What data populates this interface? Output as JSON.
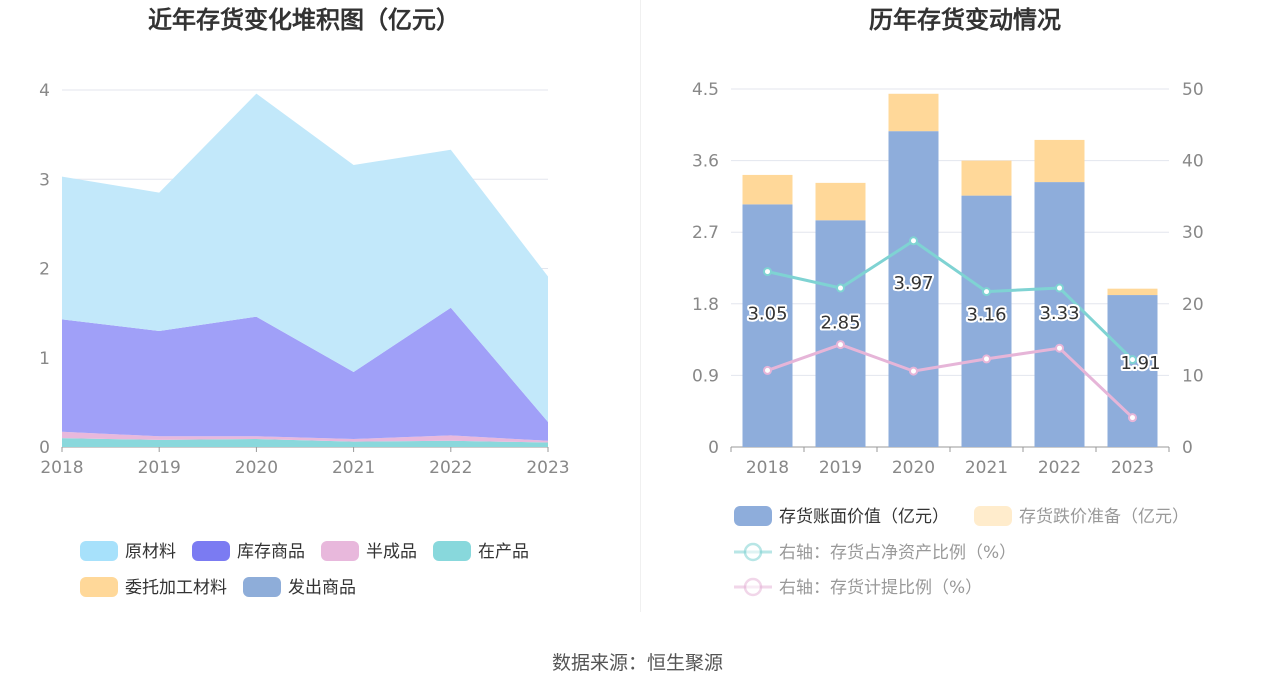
{
  "source": "数据来源：恒生聚源",
  "chart_data": [
    {
      "type": "area",
      "stacked": true,
      "title": "近年存货变化堆积图（亿元）",
      "x": [
        "2018",
        "2019",
        "2020",
        "2021",
        "2022",
        "2023"
      ],
      "ylim": [
        0,
        4
      ],
      "yticks": [
        "0",
        "1",
        "2",
        "3",
        "4"
      ],
      "grid": true,
      "legend_position": "bottom",
      "series": [
        {
          "name": "在产品",
          "color": "#8ad8dc",
          "values": [
            0.1,
            0.08,
            0.09,
            0.06,
            0.07,
            0.05
          ]
        },
        {
          "name": "半成品",
          "color": "#e8b8dc",
          "values": [
            0.07,
            0.04,
            0.03,
            0.03,
            0.06,
            0.02
          ]
        },
        {
          "name": "库存商品",
          "color": "#a0a0f8",
          "values": [
            1.26,
            1.18,
            1.34,
            0.75,
            1.43,
            0.21
          ]
        },
        {
          "name": "原材料",
          "color": "#c2e8fa",
          "values": [
            1.6,
            1.55,
            2.5,
            2.32,
            1.77,
            1.63
          ]
        },
        {
          "name": "委托加工材料",
          "color": "#ffd899",
          "values": [
            0,
            0,
            0,
            0,
            0,
            0
          ]
        },
        {
          "name": "发出商品",
          "color": "#8eadd9",
          "values": [
            0,
            0,
            0,
            0,
            0,
            0
          ]
        }
      ],
      "legend": [
        {
          "name": "原材料",
          "color": "#a7e1fb"
        },
        {
          "name": "库存商品",
          "color": "#7b7bf2"
        },
        {
          "name": "半成品",
          "color": "#e8b8dc"
        },
        {
          "name": "在产品",
          "color": "#88d8dc"
        },
        {
          "name": "委托加工材料",
          "color": "#ffd899"
        },
        {
          "name": "发出商品",
          "color": "#8eadd9"
        }
      ]
    },
    {
      "type": "bar",
      "stacked": true,
      "title": "历年存货变动情况",
      "categories": [
        "2018",
        "2019",
        "2020",
        "2021",
        "2022",
        "2023"
      ],
      "ylim": [
        0,
        4.5
      ],
      "yticks": [
        "0",
        "0.9",
        "1.8",
        "2.7",
        "3.6",
        "4.5"
      ],
      "y2lim": [
        0,
        50
      ],
      "y2ticks": [
        "0",
        "10",
        "20",
        "30",
        "40",
        "50"
      ],
      "grid": true,
      "legend_position": "bottom",
      "series": [
        {
          "name": "存货账面价值（亿元）",
          "kind": "bar",
          "color": "#8eaddb",
          "values": [
            3.05,
            2.85,
            3.97,
            3.16,
            3.33,
            1.91
          ],
          "labels": [
            "3.05",
            "2.85",
            "3.97",
            "3.16",
            "3.33",
            "1.91"
          ]
        },
        {
          "name": "存货跌价准备（亿元）",
          "kind": "bar",
          "color": "#ffd899",
          "legend_color": "#ffeccc",
          "values": [
            0.37,
            0.47,
            0.47,
            0.44,
            0.53,
            0.08
          ]
        },
        {
          "name": "右轴：存货占净资产比例（%）",
          "kind": "line",
          "axis": "right",
          "color": "#7fd3d3",
          "values": [
            24.5,
            22.2,
            28.8,
            21.7,
            22.2,
            12.2
          ]
        },
        {
          "name": "右轴：存货计提比例（%）",
          "kind": "line",
          "axis": "right",
          "color": "#e6b5d8",
          "values": [
            10.7,
            14.3,
            10.6,
            12.3,
            13.8,
            4.1
          ]
        }
      ]
    }
  ]
}
